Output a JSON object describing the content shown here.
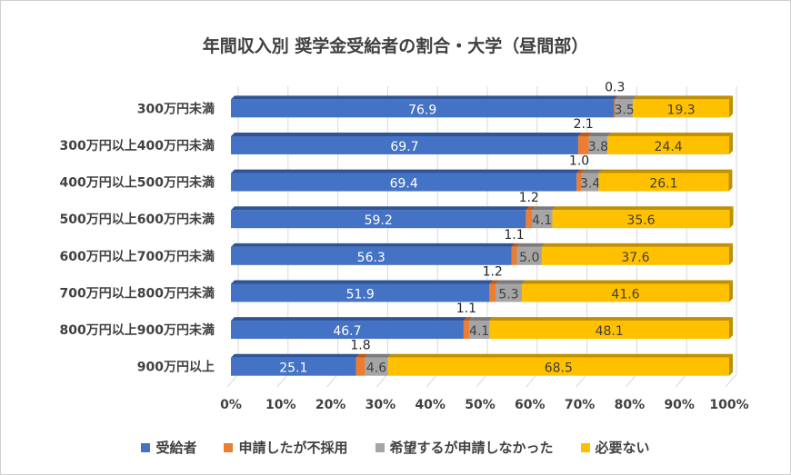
{
  "chart_data": {
    "type": "bar",
    "orientation": "horizontal",
    "stacked": "percent",
    "title": "年間収入別 奨学金受給者の割合・大学（昼間部）",
    "categories": [
      "300万円未満",
      "300万円以上400万円未満",
      "400万円以上500万円未満",
      "500万円以上600万円未満",
      "600万円以上700万円未満",
      "700万円以上800万円未満",
      "800万円以上900万円未満",
      "900万円以上"
    ],
    "series": [
      {
        "name": "受給者",
        "color": "#4472c4",
        "values": [
          76.9,
          69.7,
          69.4,
          59.2,
          56.3,
          51.9,
          46.7,
          25.1
        ]
      },
      {
        "name": "申請したが不採用",
        "color": "#ed7d31",
        "values": [
          0.3,
          2.1,
          1.0,
          1.2,
          1.1,
          1.2,
          1.1,
          1.8
        ]
      },
      {
        "name": "希望するが申請しなかった",
        "color": "#a5a5a5",
        "values": [
          3.5,
          3.8,
          3.4,
          4.1,
          5.0,
          5.3,
          4.1,
          4.6
        ]
      },
      {
        "name": "必要ない",
        "color": "#ffc000",
        "values": [
          19.3,
          24.4,
          26.1,
          35.6,
          37.6,
          41.6,
          48.1,
          68.5
        ]
      }
    ],
    "xlim": [
      0,
      100
    ],
    "xticks": [
      "0%",
      "10%",
      "20%",
      "30%",
      "40%",
      "50%",
      "60%",
      "70%",
      "80%",
      "90%",
      "100%"
    ],
    "grid": true,
    "legend": "bottom"
  }
}
